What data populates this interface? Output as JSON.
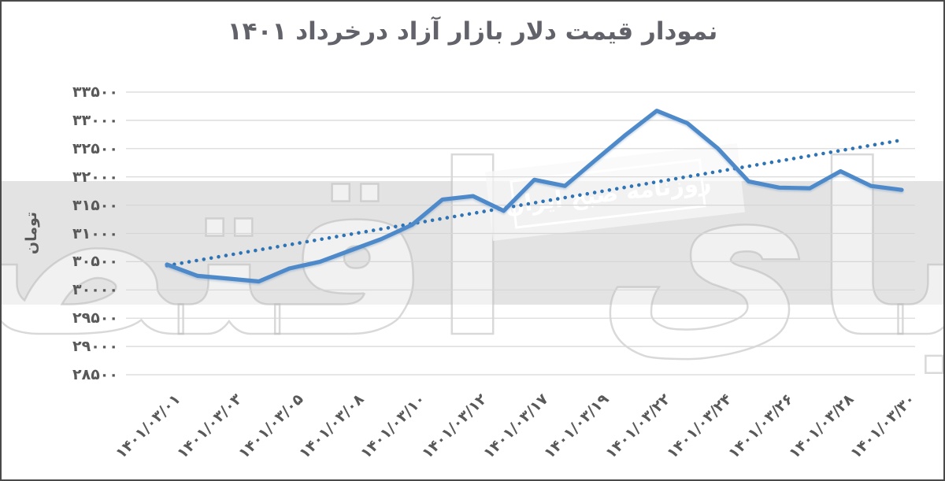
{
  "title": "نمودار قیمت دلار بازار آزاد درخرداد ۱۴۰۱",
  "y_axis_title": "تومان",
  "watermarks": {
    "brand": "دنیای اقتصاد",
    "stamp": "روزنامه صبح ایران"
  },
  "colors": {
    "line": "#4e8ac9",
    "trend": "#2e74b5",
    "grid": "#d6d6d6",
    "axis_text": "#595959",
    "title_text": "#62626a",
    "band": "#e3e3e3",
    "stamp_text": "#ffffff",
    "watermark_outline": "#bababa",
    "border": "#4a4a4a"
  },
  "chart_data": {
    "type": "line",
    "title": "نمودار قیمت دلار بازار آزاد درخرداد ۱۴۰۱",
    "xlabel": "",
    "ylabel": "تومان",
    "ylim": [
      28500,
      33500
    ],
    "grid": true,
    "legend": false,
    "yticks": {
      "values": [
        33500,
        33000,
        32500,
        32000,
        31500,
        31000,
        30500,
        30000,
        29500,
        29000,
        28500
      ],
      "labels": [
        "۳۳۵۰۰",
        "۳۳۰۰۰",
        "۳۲۵۰۰",
        "۳۲۰۰۰",
        "۳۱۵۰۰",
        "۳۱۰۰۰",
        "۳۰۵۰۰",
        "۳۰۰۰۰",
        "۲۹۵۰۰",
        "۲۹۰۰۰",
        "۲۸۵۰۰"
      ],
      "unit": "تومان"
    },
    "values": [
      30450,
      30250,
      30200,
      30150,
      30380,
      30500,
      30700,
      30900,
      31150,
      31600,
      31660,
      31400,
      31950,
      31840,
      32300,
      32750,
      33170,
      32950,
      32500,
      31920,
      31810,
      31800,
      32100,
      31840,
      31770
    ],
    "xticks": {
      "labels": [
        "۱۴۰۱/۰۳/۰۱",
        "۱۴۰۱/۰۳/۰۳",
        "۱۴۰۱/۰۳/۰۵",
        "۱۴۰۱/۰۳/۰۸",
        "۱۴۰۱/۰۳/۱۰",
        "۱۴۰۱/۰۳/۱۲",
        "۱۴۰۱/۰۳/۱۷",
        "۱۴۰۱/۰۳/۱۹",
        "۱۴۰۱/۰۳/۲۲",
        "۱۴۰۱/۰۳/۲۴",
        "۱۴۰۱/۰۳/۲۶",
        "۱۴۰۱/۰۳/۲۸",
        "۱۴۰۱/۰۳/۳۰"
      ],
      "point_indices": [
        0,
        2,
        4,
        6,
        8,
        10,
        12,
        14,
        16,
        18,
        20,
        22,
        24
      ]
    },
    "trendline": {
      "style": "dotted",
      "start_value": 30430,
      "end_value": 32650
    }
  }
}
